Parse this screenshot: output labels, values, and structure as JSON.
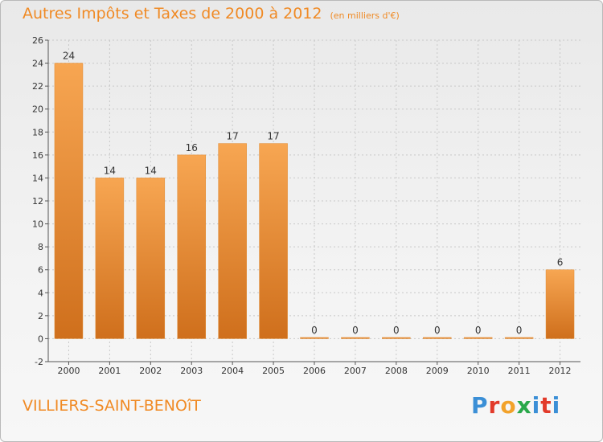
{
  "header": {
    "title": "Autres Impôts et Taxes de 2000 à 2012",
    "subtitle": "(en milliers d'€)"
  },
  "footer": {
    "place": "VILLIERS-SAINT-BENOîT"
  },
  "logo": {
    "text": "Proxiti",
    "colors": [
      "#3b8fd6",
      "#e23a2a",
      "#f2a22a",
      "#2aa84a",
      "#3b8fd6",
      "#e23a2a",
      "#3b8fd6"
    ]
  },
  "colors": {
    "bar_top": "#f7a652",
    "bar_bottom": "#cf6f1c",
    "axis": "#555555",
    "grid": "#c8c8c8"
  },
  "chart_data": {
    "type": "bar",
    "categories": [
      "2000",
      "2001",
      "2002",
      "2003",
      "2004",
      "2005",
      "2006",
      "2007",
      "2008",
      "2009",
      "2010",
      "2011",
      "2012"
    ],
    "values": [
      24,
      14,
      14,
      16,
      17,
      17,
      0,
      0,
      0,
      0,
      0,
      0,
      6
    ],
    "ylim": [
      -2,
      26
    ],
    "yticks": [
      -2,
      0,
      2,
      4,
      6,
      8,
      10,
      12,
      14,
      16,
      18,
      20,
      22,
      24,
      26
    ],
    "grid": true
  }
}
